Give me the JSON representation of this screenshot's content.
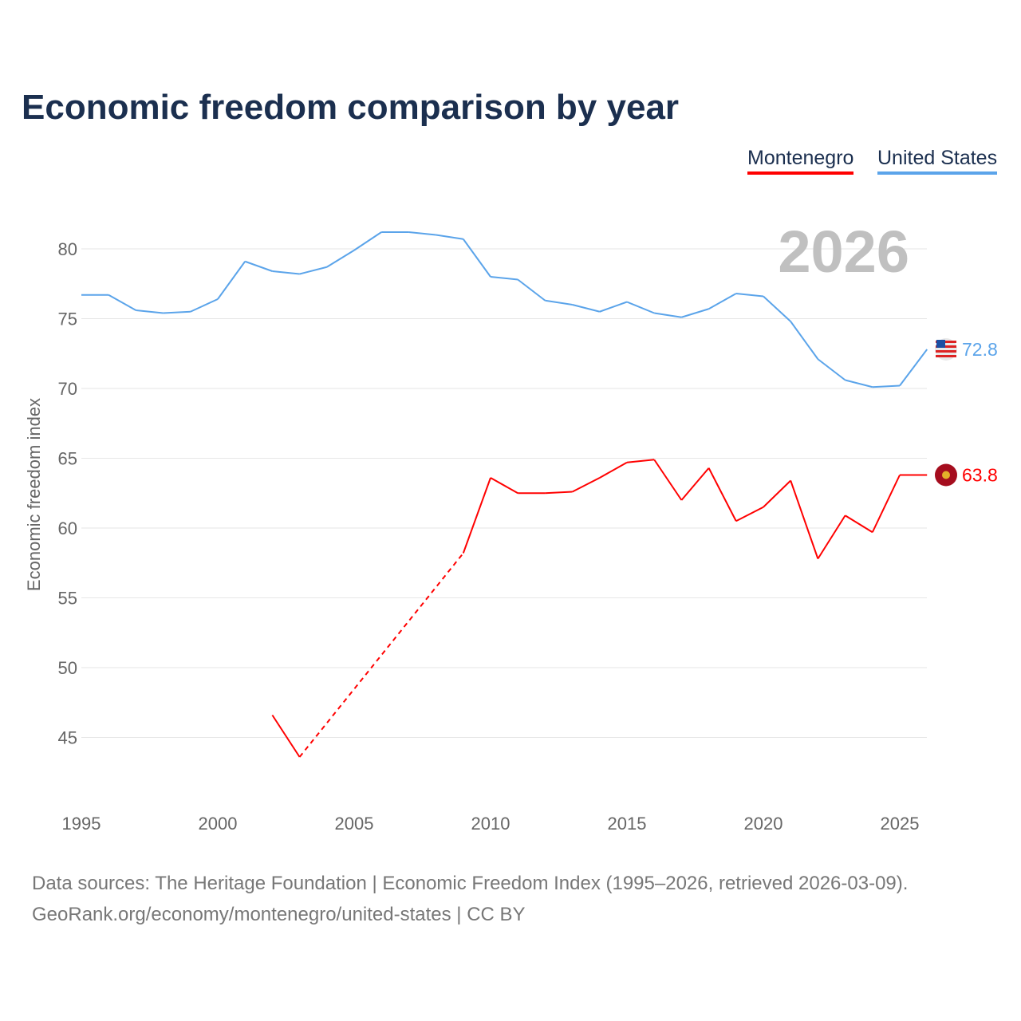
{
  "title": "Economic freedom comparison by year",
  "legend": {
    "montenegro": "Montenegro",
    "united_states": "United States"
  },
  "source_line1": "Data sources: The Heritage Foundation | Economic Freedom Index (1995–2026, retrieved 2026-03-09).",
  "source_line2": "GeoRank.org/economy/montenegro/united-states | CC BY",
  "chart_data": {
    "type": "line",
    "title": "Economic freedom comparison by year",
    "ylabel": "Economic freedom index",
    "xlim": [
      1995,
      2026
    ],
    "ylim": [
      41,
      84
    ],
    "xticks": [
      1995,
      2000,
      2005,
      2010,
      2015,
      2020,
      2025
    ],
    "yticks": [
      45,
      50,
      55,
      60,
      65,
      70,
      75,
      80
    ],
    "year_label": "2026",
    "colors": {
      "Montenegro": "#ff0000",
      "United States": "#5ba4ea"
    },
    "series": [
      {
        "name": "United States",
        "end_label": "72.8",
        "x": [
          1995,
          1996,
          1997,
          1998,
          1999,
          2000,
          2001,
          2002,
          2003,
          2004,
          2005,
          2006,
          2007,
          2008,
          2009,
          2010,
          2011,
          2012,
          2013,
          2014,
          2015,
          2016,
          2017,
          2018,
          2019,
          2020,
          2021,
          2022,
          2023,
          2024,
          2025,
          2026
        ],
        "y": [
          76.7,
          76.7,
          75.6,
          75.4,
          75.5,
          76.4,
          79.1,
          78.4,
          78.2,
          78.7,
          79.9,
          81.2,
          81.2,
          81.0,
          80.7,
          78.0,
          77.8,
          76.3,
          76.0,
          75.5,
          76.2,
          75.4,
          75.1,
          75.7,
          76.8,
          76.6,
          74.8,
          72.1,
          70.6,
          70.1,
          70.2,
          72.8
        ]
      },
      {
        "name": "Montenegro",
        "end_label": "63.8",
        "gap_dashed": [
          2003,
          2009
        ],
        "x": [
          2002,
          2003,
          2009,
          2010,
          2011,
          2012,
          2013,
          2014,
          2015,
          2016,
          2017,
          2018,
          2019,
          2020,
          2021,
          2022,
          2023,
          2024,
          2025,
          2026
        ],
        "y": [
          46.6,
          43.6,
          58.2,
          63.6,
          62.5,
          62.5,
          62.6,
          63.6,
          64.7,
          64.9,
          62.0,
          64.3,
          60.5,
          61.5,
          63.4,
          57.8,
          60.9,
          59.7,
          63.8,
          63.8
        ]
      }
    ]
  }
}
